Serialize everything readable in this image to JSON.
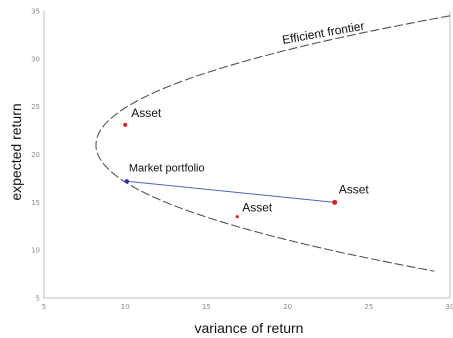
{
  "chart_data": {
    "type": "line",
    "xlabel": "variance of return",
    "ylabel": "expected return",
    "xlim": [
      5,
      30
    ],
    "ylim": [
      5,
      35
    ],
    "xticks": [
      5,
      10,
      15,
      20,
      25,
      30
    ],
    "yticks": [
      5,
      10,
      15,
      20,
      25,
      30,
      35
    ],
    "grid": false,
    "frontier": {
      "label": "Efficient frontier",
      "vertex": [
        8.2,
        21
      ],
      "y_range": [
        7.8,
        34.5
      ],
      "color": "#555555",
      "style": "dashed"
    },
    "capital_line": {
      "from": [
        10.1,
        17.2
      ],
      "to": [
        22.9,
        15.0
      ],
      "color": "#5560b8"
    },
    "points": [
      {
        "label": "Asset",
        "x": 10.0,
        "y": 23.1,
        "color": "#e02020",
        "size": 2
      },
      {
        "label": "Market portfolio",
        "x": 10.1,
        "y": 17.2,
        "color": "#2233aa",
        "size": 2.2
      },
      {
        "label": "Asset",
        "x": 16.9,
        "y": 13.5,
        "color": "#e02020",
        "size": 1.6
      },
      {
        "label": "Asset",
        "x": 22.9,
        "y": 15.0,
        "color": "#e02020",
        "size": 2.5
      }
    ]
  }
}
